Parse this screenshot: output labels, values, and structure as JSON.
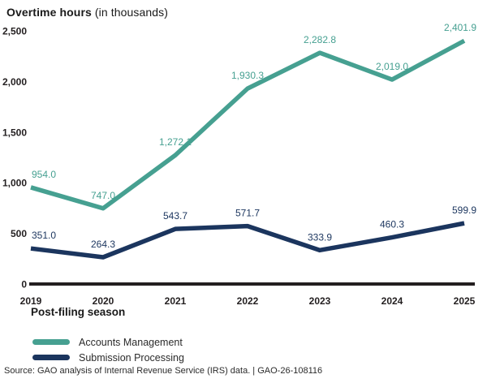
{
  "title": {
    "bold": "Overtime hours",
    "rest": " (in thousands)"
  },
  "chart_data": {
    "type": "line",
    "x": [
      2019,
      2020,
      2021,
      2022,
      2023,
      2024,
      2025
    ],
    "x_tick_labels": [
      "2019",
      "2020",
      "2021",
      "2022",
      "2023",
      "2024",
      "2025"
    ],
    "xlabel": "Post-filing season",
    "ylabel": "Overtime hours (in thousands)",
    "ylim": [
      0,
      2500
    ],
    "ytick_interval": 500,
    "ytick_labels": [
      "0",
      "500",
      "1,000",
      "1,500",
      "2,000",
      "2,500"
    ],
    "grid": false,
    "legend_position": "bottom-left",
    "axis_color": "#231f20",
    "series": [
      {
        "name": "Accounts Management",
        "color": "#46a091",
        "values": [
          954.0,
          747.0,
          1272.1,
          1930.3,
          2282.8,
          2019.0,
          2401.9
        ],
        "labels": [
          "954.0",
          "747.0",
          "1,272.1",
          "1,930.3",
          "2,282.8",
          "2,019.0",
          "2,401.9"
        ]
      },
      {
        "name": "Submission Processing",
        "color": "#1b355e",
        "values": [
          351.0,
          264.3,
          543.7,
          571.7,
          333.9,
          460.3,
          599.9
        ],
        "labels": [
          "351.0",
          "264.3",
          "543.7",
          "571.7",
          "333.9",
          "460.3",
          "599.9"
        ]
      }
    ]
  },
  "source": "Source: GAO analysis of Internal Revenue Service (IRS) data.  |  GAO-26-108116"
}
